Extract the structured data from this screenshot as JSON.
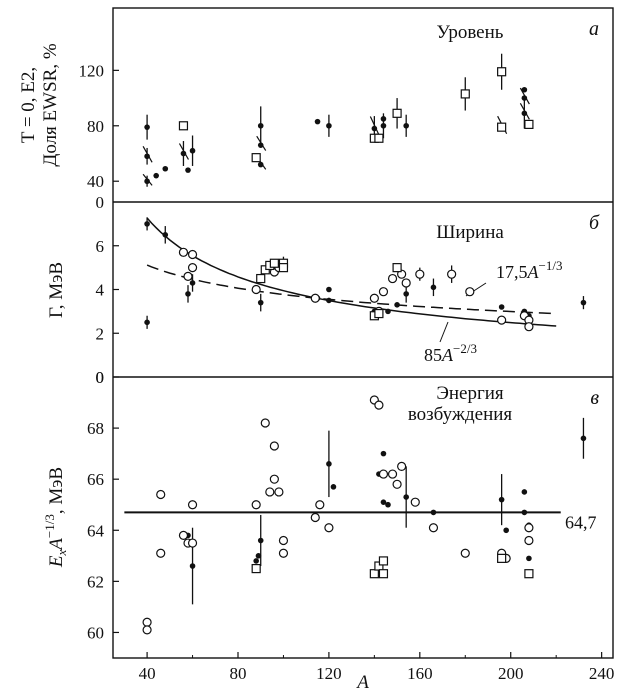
{
  "chart_data": [
    {
      "id": "a",
      "type": "scatter",
      "panel_letter": "а",
      "title": "Уровень",
      "ylabel_lines": [
        "T = 0, E2,",
        "Доля EWSR, %"
      ],
      "xlim": [
        25,
        245
      ],
      "ylim": [
        25,
        165
      ],
      "yticks": [
        40,
        80,
        120
      ],
      "series": [
        {
          "name": "filled",
          "marker": "filled-circle",
          "points": [
            {
              "x": 40,
              "y": 40,
              "err": 4
            },
            {
              "x": 40,
              "y": 58,
              "err": 6
            },
            {
              "x": 40,
              "y": 79,
              "err": 9
            },
            {
              "x": 44,
              "y": 44
            },
            {
              "x": 48,
              "y": 49
            },
            {
              "x": 56,
              "y": 60,
              "err": 9
            },
            {
              "x": 58,
              "y": 48
            },
            {
              "x": 60,
              "y": 62,
              "err": 11
            },
            {
              "x": 90,
              "y": 52
            },
            {
              "x": 90,
              "y": 66
            },
            {
              "x": 90,
              "y": 80,
              "err": 14
            },
            {
              "x": 115,
              "y": 83
            },
            {
              "x": 120,
              "y": 80,
              "err": 8
            },
            {
              "x": 140,
              "y": 78,
              "err": 9
            },
            {
              "x": 144,
              "y": 85
            },
            {
              "x": 144,
              "y": 80,
              "err": 9
            },
            {
              "x": 154,
              "y": 80,
              "err": 8
            },
            {
              "x": 206,
              "y": 106
            },
            {
              "x": 206,
              "y": 100
            },
            {
              "x": 206,
              "y": 89,
              "err": 11
            },
            {
              "x": 208,
              "y": 80
            }
          ]
        },
        {
          "name": "open-square",
          "marker": "open-square",
          "points": [
            {
              "x": 56,
              "y": 80
            },
            {
              "x": 88,
              "y": 57
            },
            {
              "x": 140,
              "y": 71
            },
            {
              "x": 142,
              "y": 71
            },
            {
              "x": 150,
              "y": 89,
              "err": 11
            },
            {
              "x": 180,
              "y": 103,
              "err": 12
            },
            {
              "x": 196,
              "y": 119,
              "err": 13
            },
            {
              "x": 196,
              "y": 79
            },
            {
              "x": 208,
              "y": 81
            }
          ]
        }
      ],
      "slant_bars": [
        {
          "x": 40,
          "y": 40,
          "len": 7
        },
        {
          "x": 40,
          "y": 58,
          "len": 10
        },
        {
          "x": 56,
          "y": 60,
          "len": 10
        },
        {
          "x": 90,
          "y": 52,
          "len": 8
        },
        {
          "x": 90,
          "y": 66,
          "len": 9
        },
        {
          "x": 140,
          "y": 78,
          "len": 12
        },
        {
          "x": 196,
          "y": 79,
          "len": 11
        },
        {
          "x": 206,
          "y": 89,
          "len": 10
        },
        {
          "x": 206,
          "y": 100,
          "len": 10
        }
      ]
    },
    {
      "id": "b",
      "type": "scatter",
      "panel_letter": "б",
      "title": "Ширина",
      "ylabel": "Г, МэВ",
      "xlim": [
        25,
        245
      ],
      "ylim": [
        0,
        8
      ],
      "yticks": [
        0,
        2,
        4,
        6
      ],
      "curves": [
        {
          "label": "85A^-2/3",
          "formula": "85*A^(-2/3)",
          "style": "solid",
          "xrange": [
            40,
            220
          ]
        },
        {
          "label": "17,5A^-1/3",
          "formula": "17.5*A^(-1/3)",
          "style": "dashed",
          "xrange": [
            40,
            220
          ]
        }
      ],
      "series": [
        {
          "name": "filled",
          "marker": "filled-circle",
          "points": [
            {
              "x": 40,
              "y": 7.0,
              "err": 0.3
            },
            {
              "x": 40,
              "y": 2.5,
              "err": 0.3
            },
            {
              "x": 48,
              "y": 6.5,
              "err": 0.4
            },
            {
              "x": 58,
              "y": 3.8,
              "err": 0.4
            },
            {
              "x": 60,
              "y": 4.3,
              "err": 0.4
            },
            {
              "x": 90,
              "y": 3.4,
              "err": 0.4
            },
            {
              "x": 115,
              "y": 3.6
            },
            {
              "x": 120,
              "y": 4.0
            },
            {
              "x": 120,
              "y": 3.5
            },
            {
              "x": 140,
              "y": 3.0
            },
            {
              "x": 142,
              "y": 2.9
            },
            {
              "x": 146,
              "y": 3.0
            },
            {
              "x": 150,
              "y": 3.3
            },
            {
              "x": 154,
              "y": 3.8,
              "err": 0.4
            },
            {
              "x": 166,
              "y": 4.1,
              "err": 0.4
            },
            {
              "x": 196,
              "y": 3.2
            },
            {
              "x": 206,
              "y": 3.0
            },
            {
              "x": 208,
              "y": 2.8
            },
            {
              "x": 232,
              "y": 3.4,
              "err": 0.3
            }
          ]
        },
        {
          "name": "open-circle",
          "marker": "open-circle",
          "points": [
            {
              "x": 56,
              "y": 5.7
            },
            {
              "x": 58,
              "y": 4.6
            },
            {
              "x": 60,
              "y": 5.6
            },
            {
              "x": 60,
              "y": 5.0
            },
            {
              "x": 88,
              "y": 4.0
            },
            {
              "x": 96,
              "y": 4.8
            },
            {
              "x": 98,
              "y": 5.0
            },
            {
              "x": 114,
              "y": 3.6
            },
            {
              "x": 140,
              "y": 3.6
            },
            {
              "x": 142,
              "y": 3.0
            },
            {
              "x": 144,
              "y": 3.9
            },
            {
              "x": 148,
              "y": 4.5
            },
            {
              "x": 152,
              "y": 4.7
            },
            {
              "x": 154,
              "y": 4.3
            },
            {
              "x": 160,
              "y": 4.7,
              "err": 0.3
            },
            {
              "x": 174,
              "y": 4.7,
              "err": 0.4
            },
            {
              "x": 182,
              "y": 3.9
            },
            {
              "x": 196,
              "y": 2.6
            },
            {
              "x": 206,
              "y": 2.8
            },
            {
              "x": 208,
              "y": 2.6
            },
            {
              "x": 208,
              "y": 2.3
            }
          ]
        },
        {
          "name": "open-square",
          "marker": "open-square",
          "points": [
            {
              "x": 90,
              "y": 4.5
            },
            {
              "x": 92,
              "y": 4.9
            },
            {
              "x": 94,
              "y": 5.1
            },
            {
              "x": 96,
              "y": 5.2
            },
            {
              "x": 100,
              "y": 5.2,
              "err": 0.3
            },
            {
              "x": 100,
              "y": 5.0
            },
            {
              "x": 140,
              "y": 2.8
            },
            {
              "x": 142,
              "y": 2.9
            },
            {
              "x": 150,
              "y": 5.0
            }
          ]
        }
      ]
    },
    {
      "id": "v",
      "type": "scatter",
      "panel_letter": "в",
      "title_lines": [
        "Энергия",
        "возбуждения"
      ],
      "ylabel": "E_x A^-1/3, МэВ",
      "xlabel": "A",
      "xlim": [
        25,
        245
      ],
      "xticks": [
        40,
        80,
        120,
        160,
        200,
        240
      ],
      "ylim": [
        59,
        70
      ],
      "yticks": [
        60,
        62,
        64,
        66,
        68
      ],
      "hline": {
        "y": 64.7,
        "label": "64,7",
        "xrange": [
          30,
          222
        ]
      },
      "series": [
        {
          "name": "filled",
          "marker": "filled-circle",
          "points": [
            {
              "x": 58,
              "y": 63.8
            },
            {
              "x": 60,
              "y": 62.6,
              "err": 1.5
            },
            {
              "x": 88,
              "y": 62.8
            },
            {
              "x": 89,
              "y": 63.0
            },
            {
              "x": 90,
              "y": 63.6,
              "err": 1.0
            },
            {
              "x": 120,
              "y": 66.6,
              "err": 1.3
            },
            {
              "x": 122,
              "y": 65.7
            },
            {
              "x": 142,
              "y": 66.2
            },
            {
              "x": 144,
              "y": 67.0
            },
            {
              "x": 144,
              "y": 65.1
            },
            {
              "x": 146,
              "y": 65.0
            },
            {
              "x": 154,
              "y": 65.3,
              "err": 1.2
            },
            {
              "x": 166,
              "y": 64.7
            },
            {
              "x": 196,
              "y": 65.2,
              "err": 1.0
            },
            {
              "x": 198,
              "y": 64.0
            },
            {
              "x": 206,
              "y": 65.5
            },
            {
              "x": 206,
              "y": 64.7
            },
            {
              "x": 208,
              "y": 62.9
            },
            {
              "x": 208,
              "y": 64.2
            },
            {
              "x": 232,
              "y": 67.6,
              "err": 0.8
            }
          ]
        },
        {
          "name": "open-circle",
          "marker": "open-circle",
          "points": [
            {
              "x": 40,
              "y": 60.4
            },
            {
              "x": 40,
              "y": 60.1
            },
            {
              "x": 46,
              "y": 65.4
            },
            {
              "x": 46,
              "y": 63.1
            },
            {
              "x": 56,
              "y": 63.8
            },
            {
              "x": 58,
              "y": 63.5
            },
            {
              "x": 60,
              "y": 65.0
            },
            {
              "x": 60,
              "y": 63.5
            },
            {
              "x": 88,
              "y": 65.0
            },
            {
              "x": 92,
              "y": 68.2
            },
            {
              "x": 94,
              "y": 65.5
            },
            {
              "x": 96,
              "y": 66.0
            },
            {
              "x": 96,
              "y": 67.3
            },
            {
              "x": 98,
              "y": 65.5
            },
            {
              "x": 100,
              "y": 63.6
            },
            {
              "x": 100,
              "y": 63.1
            },
            {
              "x": 114,
              "y": 64.5
            },
            {
              "x": 116,
              "y": 65.0
            },
            {
              "x": 120,
              "y": 64.1
            },
            {
              "x": 140,
              "y": 69.1
            },
            {
              "x": 142,
              "y": 68.9
            },
            {
              "x": 144,
              "y": 66.2
            },
            {
              "x": 148,
              "y": 66.2
            },
            {
              "x": 150,
              "y": 65.8
            },
            {
              "x": 152,
              "y": 66.5
            },
            {
              "x": 158,
              "y": 65.1
            },
            {
              "x": 166,
              "y": 64.1
            },
            {
              "x": 180,
              "y": 63.1
            },
            {
              "x": 196,
              "y": 63.1
            },
            {
              "x": 198,
              "y": 62.9
            },
            {
              "x": 208,
              "y": 63.6
            },
            {
              "x": 208,
              "y": 64.1
            }
          ]
        },
        {
          "name": "open-square",
          "marker": "open-square",
          "points": [
            {
              "x": 88,
              "y": 62.5
            },
            {
              "x": 140,
              "y": 62.3
            },
            {
              "x": 142,
              "y": 62.6
            },
            {
              "x": 144,
              "y": 62.3
            },
            {
              "x": 144,
              "y": 62.8
            },
            {
              "x": 196,
              "y": 62.9
            },
            {
              "x": 208,
              "y": 62.3
            }
          ]
        }
      ]
    }
  ]
}
